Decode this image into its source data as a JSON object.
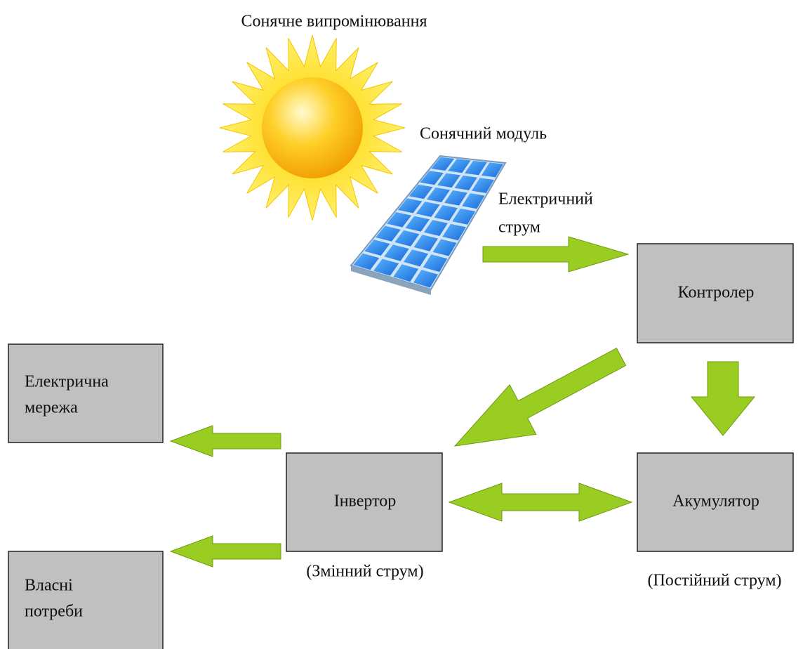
{
  "sun_label": "Сонячне випромінювання",
  "module_label": "Сонячний модуль",
  "current_label": [
    "Електричний",
    "струм"
  ],
  "nodes": [
    {
      "lines": [
        "Контролер"
      ]
    },
    {
      "lines": [
        "Електрична",
        "мережа"
      ]
    },
    {
      "lines": [
        "Інвертор"
      ],
      "note": "(Змінний струм)"
    },
    {
      "lines": [
        "Акумулятор"
      ],
      "note": "(Постійний струм)"
    },
    {
      "lines": [
        "Власні",
        "потреби"
      ]
    }
  ]
}
